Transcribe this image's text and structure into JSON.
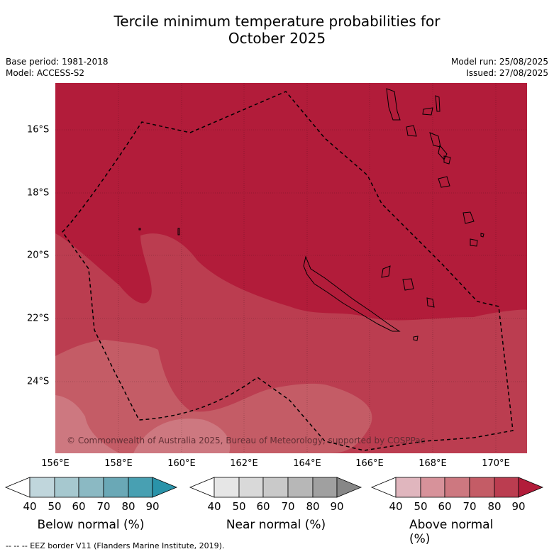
{
  "title_line1": "Tercile minimum temperature probabilities for",
  "title_line2": "October 2025",
  "meta": {
    "base_period": "Base period: 1981-2018",
    "model": "Model: ACCESS-S2",
    "model_run": "Model run: 25/08/2025",
    "issued": "Issued: 27/08/2025"
  },
  "lat_labels": [
    "16°S",
    "18°S",
    "20°S",
    "22°S",
    "24°S"
  ],
  "lon_labels": [
    "156°E",
    "158°E",
    "160°E",
    "162°E",
    "164°E",
    "166°E",
    "168°E",
    "170°E"
  ],
  "copyright": "© Commonwealth of Australia 2025, Bureau of Meteorology, supported by COSPPac",
  "colorbars": [
    {
      "title": "Below normal (%)",
      "ticks": [
        "40",
        "50",
        "60",
        "70",
        "80",
        "90"
      ],
      "colors": [
        "#c0d6dc",
        "#a6c8cf",
        "#8bb9c3",
        "#6aa8b6",
        "#48a0b2",
        "#2a93a9"
      ]
    },
    {
      "title": "Near normal (%)",
      "ticks": [
        "40",
        "50",
        "60",
        "70",
        "80",
        "90"
      ],
      "colors": [
        "#e6e6e6",
        "#d9d9d9",
        "#c9c9c9",
        "#b7b7b7",
        "#a0a0a0",
        "#878787"
      ]
    },
    {
      "title": "Above normal (%)",
      "ticks": [
        "40",
        "50",
        "60",
        "70",
        "80",
        "90"
      ],
      "colors": [
        "#e0b6be",
        "#d7929a",
        "#cd7880",
        "#c45c66",
        "#bb3d50",
        "#b21c3a"
      ]
    }
  ],
  "footnote": "--  --  -- EEZ border V11 (Flanders Marine Institute, 2019).",
  "map_colors": {
    "above_90": "#b21c3a",
    "above_80": "#bb3d50",
    "above_70": "#c45c66",
    "above_60": "#cd7880"
  }
}
